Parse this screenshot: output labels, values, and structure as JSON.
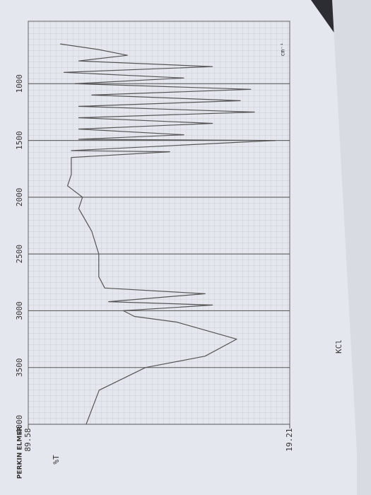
{
  "chart_data": {
    "type": "line",
    "brand": "PERKIN ELMER",
    "x_label": "cm⁻¹",
    "y_label": "%T",
    "annotation": "KCl",
    "x": [
      4000,
      3700,
      3500,
      3400,
      3250,
      3100,
      3050,
      3000,
      2950,
      2920,
      2850,
      2800,
      2700,
      2500,
      2300,
      2100,
      2000,
      1900,
      1800,
      1700,
      1650,
      1600,
      1590,
      1500,
      1490,
      1450,
      1400,
      1350,
      1300,
      1250,
      1200,
      1150,
      1100,
      1050,
      1000,
      950,
      900,
      850,
      800,
      750,
      700,
      650
    ],
    "series": [
      {
        "name": "%T",
        "color": "#555555",
        "values": [
          74,
          70.5,
          58,
          42,
          33.5,
          49.6,
          61,
          64,
          40,
          68,
          42,
          69,
          70.6,
          70.6,
          72.5,
          76,
          75,
          79,
          78,
          78,
          78,
          51.5,
          78,
          23,
          76,
          47.7,
          76,
          40,
          76,
          28.7,
          76,
          32.5,
          72.5,
          29.7,
          77,
          47.7,
          80,
          40,
          76,
          62.9,
          70.6,
          81
        ]
      }
    ],
    "xlim": [
      4000,
      450
    ],
    "xticks": [
      {
        "value": 4000,
        "label": "4000"
      },
      {
        "value": 3500,
        "label": "3500"
      },
      {
        "value": 3000,
        "label": "3000"
      },
      {
        "value": 2500,
        "label": "2500"
      },
      {
        "value": 2000,
        "label": "2000"
      },
      {
        "value": 1500,
        "label": "1500"
      },
      {
        "value": 1000,
        "label": "1000"
      }
    ],
    "ylim": [
      19.21,
      89.58
    ],
    "yticks": [
      19.21,
      89.58
    ],
    "grid": true
  }
}
